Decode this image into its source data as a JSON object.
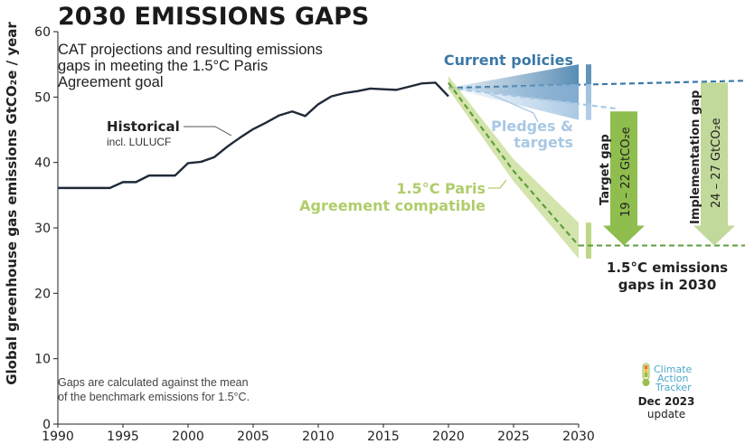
{
  "header": {
    "title": "2030 EMISSIONS GAPS",
    "subtitle_lines": [
      "CAT projections and resulting emissions",
      "gaps in meeting the 1.5°C Paris",
      "Agreement goal"
    ]
  },
  "chart_data": {
    "type": "line",
    "title": "2030 EMISSIONS GAPS",
    "ylabel": "Global greenhouse gas emissions GtCO₂e / year",
    "xlim": [
      1990,
      2030
    ],
    "ylim": [
      0,
      60
    ],
    "x_ticks": [
      1990,
      1995,
      2000,
      2005,
      2010,
      2015,
      2020,
      2025,
      2030
    ],
    "y_ticks": [
      0,
      10,
      20,
      30,
      40,
      50,
      60
    ],
    "grid": false,
    "series": [
      {
        "name": "Historical",
        "label_line1": "Historical",
        "label_line2": "incl. LULUCF",
        "color": "#1f2a38",
        "x": [
          1990,
          1991,
          1992,
          1993,
          1994,
          1995,
          1996,
          1997,
          1998,
          1999,
          2000,
          2001,
          2002,
          2003,
          2004,
          2005,
          2006,
          2007,
          2008,
          2009,
          2010,
          2011,
          2012,
          2013,
          2014,
          2015,
          2016,
          2017,
          2018,
          2019,
          2020
        ],
        "y": [
          36.1,
          36.1,
          36.1,
          36.1,
          36.1,
          37.0,
          37.0,
          38.0,
          38.0,
          38.0,
          39.9,
          40.1,
          40.8,
          42.4,
          43.8,
          45.1,
          46.1,
          47.2,
          47.8,
          47.1,
          48.9,
          50.1,
          50.6,
          50.9,
          51.3,
          51.2,
          51.1,
          51.6,
          52.1,
          52.2,
          50.1
        ]
      },
      {
        "name": "Current policies",
        "color": "#3b79a8",
        "x": [
          2020,
          2030
        ],
        "y": [
          51.4,
          52.5
        ],
        "range_2030": [
          49.0,
          55.0
        ]
      },
      {
        "name": "Pledges & targets",
        "label_line1": "Pledges &",
        "label_line2": "targets",
        "color": "#a8c8e4",
        "x": [
          2020,
          2030
        ],
        "y": [
          51.4,
          48.2
        ],
        "range_2030": [
          46.5,
          52.0
        ]
      },
      {
        "name": "1.5°C Paris Agreement compatible",
        "label_line1": "1.5°C Paris",
        "label_line2": "Agreement compatible",
        "color": "#b0cd6a",
        "center_color": "#5f9e3c",
        "x": [
          2020,
          2025,
          2030
        ],
        "y": [
          52.2,
          38.7,
          27.3
        ],
        "upper": [
          53.2,
          40.5,
          30.8
        ],
        "lower": [
          51.2,
          37.1,
          25.3
        ]
      }
    ],
    "gaps": [
      {
        "label": "Target gap",
        "value_text": "19 – 22 GtCO₂e",
        "from": 47.8,
        "to": 27.3,
        "color": "#8fbd4e"
      },
      {
        "label": "Implementation gap",
        "value_text": "24 – 27 GtCO₂e",
        "from": 52.2,
        "to": 27.3,
        "color": "#c1d99a"
      }
    ],
    "annotations": {
      "gaps_2030_line1": "1.5°C emissions",
      "gaps_2030_line2": "gaps in 2030",
      "note_line1": "Gaps are calculated against the mean",
      "note_line2": "of the benchmark emissions for 1.5°C."
    }
  },
  "logo": {
    "line1": "Climate",
    "line2": "Action",
    "line3": "Tracker",
    "date": "Dec 2023",
    "update": "update"
  }
}
